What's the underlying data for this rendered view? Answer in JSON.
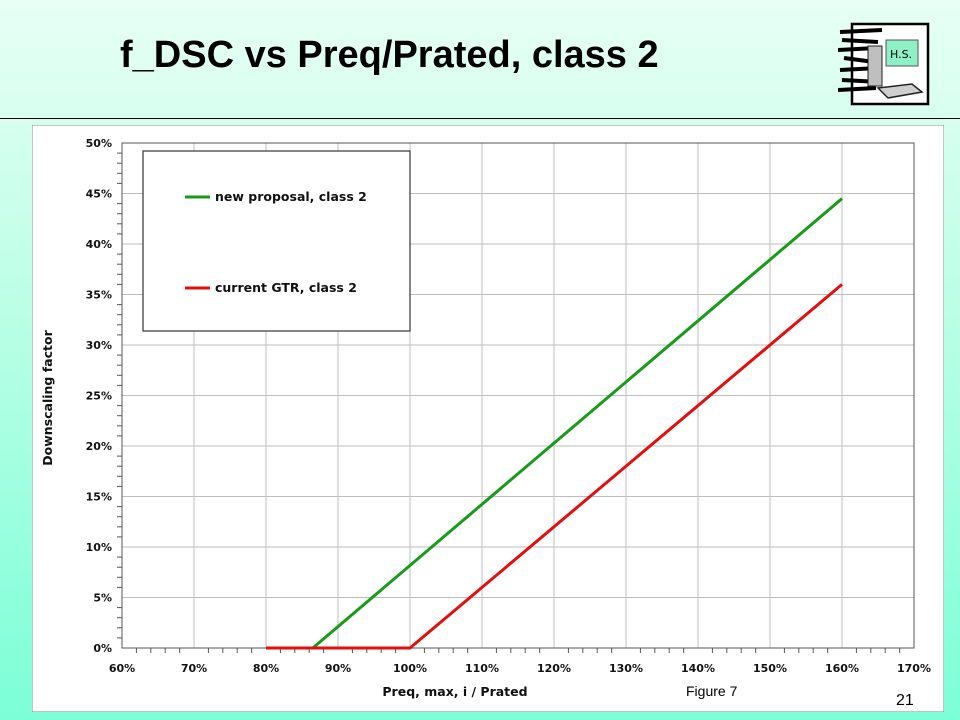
{
  "slide": {
    "title": "f_DSC vs Preq/Prated, class 2",
    "logo_text": "H.S.",
    "page_number": "21"
  },
  "chart_data": {
    "type": "line",
    "title": "",
    "xlabel": "Preq, max, i / Prated",
    "ylabel": "Downscaling factor",
    "xlim": [
      0.6,
      1.7
    ],
    "ylim": [
      0,
      0.5
    ],
    "x_ticks": [
      "60%",
      "70%",
      "80%",
      "90%",
      "100%",
      "110%",
      "120%",
      "130%",
      "140%",
      "150%",
      "160%",
      "170%"
    ],
    "y_ticks": [
      "0%",
      "5%",
      "10%",
      "15%",
      "20%",
      "25%",
      "30%",
      "35%",
      "40%",
      "45%",
      "50%"
    ],
    "grid": true,
    "legend_position": "top-left",
    "annotation": "Figure 7",
    "series": [
      {
        "name": "new proposal, class 2",
        "color": "#1a9a1a",
        "x": [
          0.865,
          1.6
        ],
        "y": [
          0.0,
          0.445
        ]
      },
      {
        "name": "current GTR, class 2",
        "color": "#e01010",
        "x": [
          0.8,
          1.0,
          1.6
        ],
        "y": [
          0.0,
          0.0,
          0.36
        ]
      }
    ]
  }
}
